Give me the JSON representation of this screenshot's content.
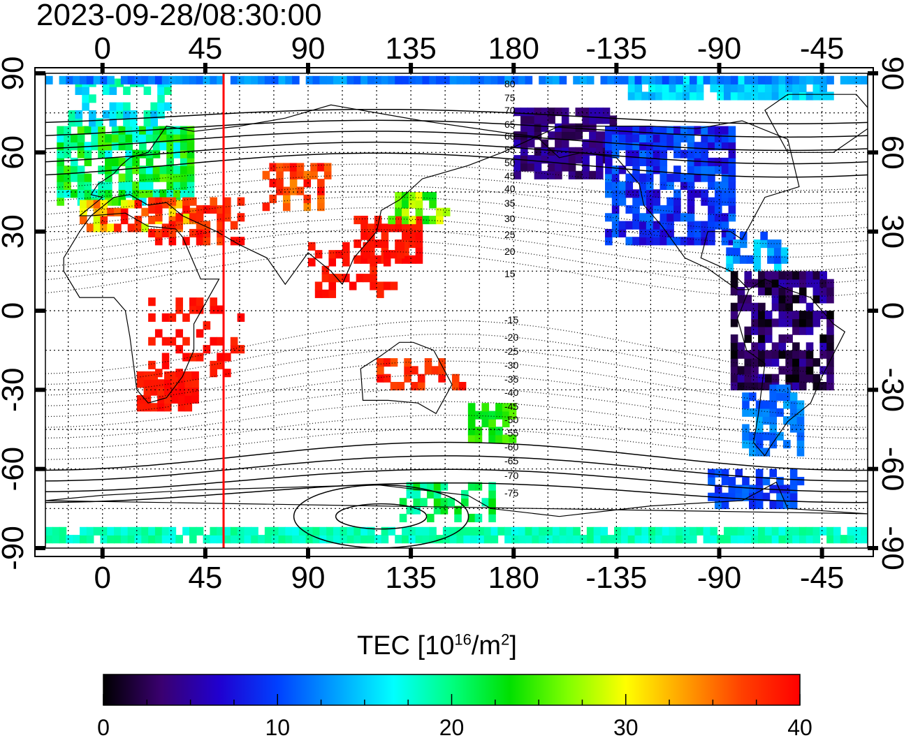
{
  "timestamp": "2023-09-28/08:30:00",
  "top_lon_labels": [
    "0",
    "45",
    "90",
    "135",
    "180",
    "-135",
    "-90",
    "-45"
  ],
  "bottom_lon_labels": [
    "0",
    "45",
    "90",
    "135",
    "180",
    "-135",
    "-90",
    "-45"
  ],
  "lat_labels": [
    "90",
    "60",
    "30",
    "0",
    "-30",
    "-60",
    "-90"
  ],
  "contour_labels": [
    "80",
    "75",
    "70",
    "65",
    "60",
    "55",
    "50",
    "45",
    "40",
    "35",
    "30",
    "25",
    "20",
    "15",
    "-15",
    "-20",
    "-25",
    "-30",
    "-35",
    "-40",
    "-45",
    "-50",
    "-55",
    "-60",
    "-65",
    "-70",
    "-75"
  ],
  "colorbar": {
    "title": "TEC  [10",
    "title_exp": "16",
    "title_unit": "/m",
    "title_unit_exp": "2",
    "title_close": "]",
    "min": 0,
    "max": 40,
    "tick_labels": [
      "0",
      "10",
      "20",
      "30",
      "40"
    ],
    "colors": [
      "#000000",
      "#3a0070",
      "#2000d0",
      "#0040ff",
      "#00a0ff",
      "#00ffff",
      "#00ff80",
      "#00e000",
      "#80ff00",
      "#ffff00",
      "#ffa000",
      "#ff4000",
      "#ff0000"
    ]
  },
  "map": {
    "lon_range": [
      -25,
      335
    ],
    "lat_range": [
      -90,
      90
    ],
    "marker_line_lon": 53,
    "marker_line_color": "#ff0000"
  },
  "chart_data": {
    "type": "heatmap",
    "title": "2023-09-28/08:30:00",
    "xlabel": "",
    "ylabel": "",
    "colorbar_label": "TEC [10^16/m^2]",
    "zlim": [
      0,
      40
    ],
    "regions": [
      {
        "lat": 45,
        "lon": 10,
        "tec": 24
      },
      {
        "lat": 35,
        "lon": 45,
        "tec": 40
      },
      {
        "lat": 40,
        "lon": 85,
        "tec": 38
      },
      {
        "lat": 28,
        "lon": 120,
        "tec": 40
      },
      {
        "lat": -30,
        "lon": 25,
        "tec": 40
      },
      {
        "lat": -40,
        "lon": 175,
        "tec": 24
      },
      {
        "lat": 62,
        "lon": 210,
        "tec": 3
      },
      {
        "lat": 45,
        "lon": 260,
        "tec": 9
      },
      {
        "lat": -10,
        "lon": 300,
        "tec": 2
      },
      {
        "lat": -40,
        "lon": 295,
        "tec": 12
      },
      {
        "lat": -75,
        "lon": 150,
        "tec": 22
      },
      {
        "lat": 85,
        "lon": 290,
        "tec": 15
      }
    ]
  }
}
